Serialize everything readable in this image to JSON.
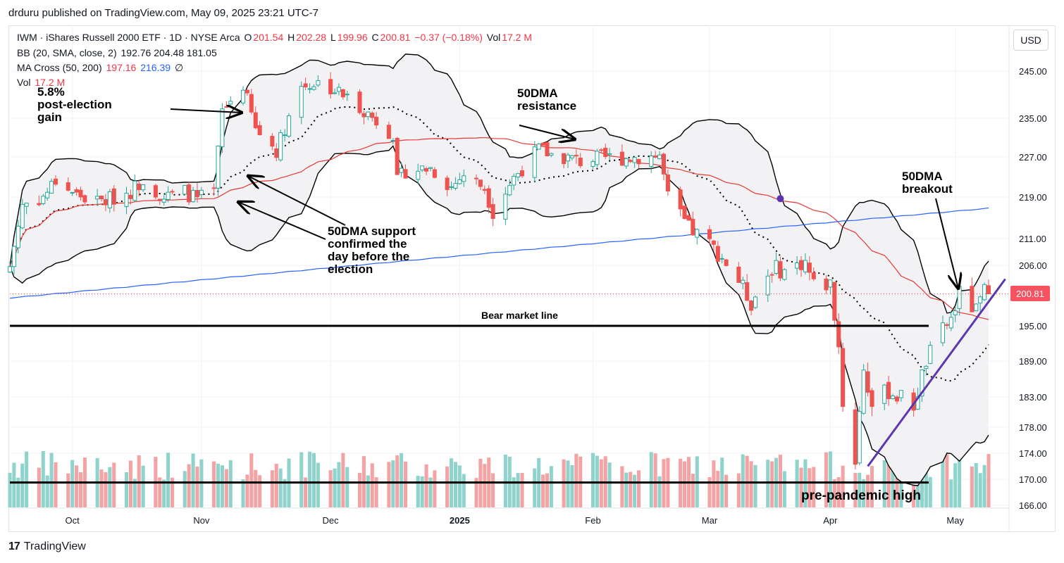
{
  "publish_line": "drduru published on TradingView.com, May 09, 2025 23:21 UTC-7",
  "footer_brand": "TradingView",
  "footer_logo_glyph": "17",
  "legend": {
    "title": "IWM · iShares Russell 2000 ETF · 1D · NYSE Arca",
    "o_label": "O",
    "o_value": "201.54",
    "h_label": "H",
    "h_value": "202.28",
    "l_label": "L",
    "l_value": "199.96",
    "c_label": "C",
    "c_value": "200.81",
    "change": "−0.37 (−0.18%)",
    "vol_label": "Vol",
    "vol_value": "17.2 M",
    "bb_label": "BB (20, SMA, close, 2)",
    "bb_values": "192.76  204.48  181.05",
    "ma_label": "MA Cross (50, 200)",
    "ma50_value": "197.16",
    "ma200_value": "216.39",
    "ma_icon": "∅",
    "vol2_label": "Vol",
    "vol2_value": "17.2 M"
  },
  "currency_button": "USD",
  "last_price_tag": "200.81",
  "annotations": {
    "post_election_1": "5.8%",
    "post_election_2": "post-election",
    "post_election_3": "gain",
    "resistance_1": "50DMA",
    "resistance_2": "resistance",
    "breakout_1": "50DMA",
    "breakout_2": "breakout",
    "support_1": "50DMA support",
    "support_2": "confirmed the",
    "support_3": "day before the",
    "support_4": "election",
    "bear_line": "Bear market line",
    "prepandemic": "pre-pandemic high"
  },
  "chart_data": {
    "type": "candlestick",
    "ticker": "IWM",
    "price_axis_labels": [
      "245.00",
      "235.00",
      "227.00",
      "219.00",
      "211.00",
      "206.00",
      "195.00",
      "189.00",
      "183.00",
      "178.00",
      "174.00",
      "170.00",
      "166.00"
    ],
    "price_axis_values": [
      245,
      235,
      227,
      219,
      211,
      206,
      195,
      189,
      183,
      178,
      174,
      170,
      166
    ],
    "time_axis_labels": [
      "Oct",
      "Nov",
      "Dec",
      "2025",
      "Feb",
      "Mar",
      "Apr",
      "May"
    ],
    "time_axis_dates": [
      "2024-10-01",
      "2024-11-01",
      "2024-12-02",
      "2025-01-02",
      "2025-02-03",
      "2025-03-03",
      "2025-04-01",
      "2025-05-01"
    ],
    "horizontal_lines": {
      "bear_market_line": 195.0,
      "pre_pandemic_high": 169.5
    },
    "last_price": 200.81,
    "closes": [
      [
        "2024-09-16",
        205.8
      ],
      [
        "2024-09-19",
        217.6
      ],
      [
        "2024-09-24",
        219.0
      ],
      [
        "2024-09-27",
        222.4
      ],
      [
        "2024-10-02",
        219.5
      ],
      [
        "2024-10-07",
        218.0
      ],
      [
        "2024-10-10",
        218.6
      ],
      [
        "2024-10-15",
        220.2
      ],
      [
        "2024-10-18",
        222.6
      ],
      [
        "2024-10-23",
        218.9
      ],
      [
        "2024-10-28",
        220.1
      ],
      [
        "2024-10-31",
        218.5
      ],
      [
        "2024-11-04",
        219.9
      ],
      [
        "2024-11-06",
        236.5
      ],
      [
        "2024-11-11",
        242.0
      ],
      [
        "2024-11-14",
        232.7
      ],
      [
        "2024-11-19",
        228.4
      ],
      [
        "2024-11-22",
        235.4
      ],
      [
        "2024-11-25",
        241.8
      ],
      [
        "2024-11-29",
        242.6
      ],
      [
        "2024-12-04",
        240.5
      ],
      [
        "2024-12-09",
        237.5
      ],
      [
        "2024-12-12",
        235.2
      ],
      [
        "2024-12-17",
        231.7
      ],
      [
        "2024-12-18",
        222.0
      ],
      [
        "2024-12-20",
        224.3
      ],
      [
        "2024-12-26",
        224.8
      ],
      [
        "2024-12-31",
        221.0
      ],
      [
        "2025-01-03",
        223.5
      ],
      [
        "2025-01-08",
        220.9
      ],
      [
        "2025-01-10",
        216.2
      ],
      [
        "2025-01-15",
        222.9
      ],
      [
        "2025-01-21",
        228.6
      ],
      [
        "2025-01-24",
        227.5
      ],
      [
        "2025-01-29",
        226.6
      ],
      [
        "2025-01-31",
        226.1
      ],
      [
        "2025-02-05",
        226.9
      ],
      [
        "2025-02-10",
        226.8
      ],
      [
        "2025-02-14",
        227.0
      ],
      [
        "2025-02-19",
        227.3
      ],
      [
        "2025-02-21",
        219.0
      ],
      [
        "2025-02-26",
        213.0
      ],
      [
        "2025-03-03",
        210.0
      ],
      [
        "2025-03-06",
        207.5
      ],
      [
        "2025-03-10",
        203.2
      ],
      [
        "2025-03-13",
        199.2
      ],
      [
        "2025-03-18",
        205.6
      ],
      [
        "2025-03-21",
        205.0
      ],
      [
        "2025-03-26",
        206.7
      ],
      [
        "2025-03-28",
        202.5
      ],
      [
        "2025-04-01",
        202.6
      ],
      [
        "2025-04-03",
        191.5
      ],
      [
        "2025-04-04",
        182.0
      ],
      [
        "2025-04-07",
        173.0
      ],
      [
        "2025-04-09",
        187.9
      ],
      [
        "2025-04-11",
        181.5
      ],
      [
        "2025-04-15",
        184.1
      ],
      [
        "2025-04-17",
        183.2
      ],
      [
        "2025-04-21",
        181.6
      ],
      [
        "2025-04-24",
        188.9
      ],
      [
        "2025-04-28",
        194.2
      ],
      [
        "2025-04-30",
        196.2
      ],
      [
        "2025-05-02",
        200.8
      ],
      [
        "2025-05-06",
        197.6
      ],
      [
        "2025-05-08",
        201.2
      ],
      [
        "2025-05-09",
        200.81
      ]
    ],
    "series": [
      {
        "name": "MA Cross 50",
        "last_value": 197.16
      },
      {
        "name": "MA Cross 200",
        "last_value": 216.39
      },
      {
        "name": "BB basis",
        "last_value": 192.76
      },
      {
        "name": "BB upper",
        "last_value": 204.48
      },
      {
        "name": "BB lower",
        "last_value": 181.05
      }
    ]
  }
}
